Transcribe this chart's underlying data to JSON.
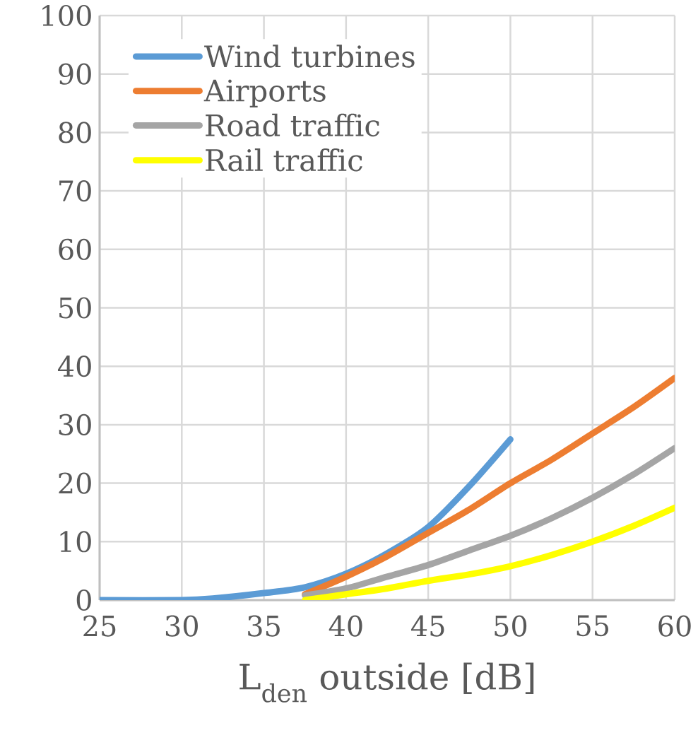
{
  "chart_data": {
    "type": "line",
    "xlabel": "L$_{den}$ outside [dB]",
    "xlim": [
      25,
      60
    ],
    "xticks": [
      25,
      30,
      35,
      40,
      45,
      50,
      55,
      60
    ],
    "ylim": [
      0,
      100
    ],
    "yticks": [
      0,
      10,
      20,
      30,
      40,
      50,
      60,
      70,
      80,
      90,
      100
    ],
    "grid": true,
    "legend": "top left",
    "marker": "none",
    "line_style": "solid",
    "series": [
      {
        "name": "Wind turbines",
        "color": "#5b9bd5",
        "x": [
          25,
          30,
          32,
          35,
          37.5,
          40,
          42.5,
          45,
          47.5,
          50
        ],
        "values": [
          0,
          0,
          0.3,
          1.2,
          2.2,
          4.5,
          8,
          12.5,
          19.5,
          27.5
        ]
      },
      {
        "name": "Airports",
        "color": "#ed7d31",
        "x": [
          37.5,
          40,
          42.5,
          45,
          47.5,
          50,
          52.5,
          55,
          57.5,
          60
        ],
        "values": [
          1,
          4,
          7.5,
          11.5,
          15.5,
          20,
          24,
          28.5,
          33,
          38
        ]
      },
      {
        "name": "Road traffic",
        "color": "#a5a5a5",
        "x": [
          37.5,
          40,
          42.5,
          45,
          47.5,
          50,
          52.5,
          55,
          57.5,
          60
        ],
        "values": [
          0.8,
          2,
          4,
          6,
          8.5,
          11,
          14,
          17.5,
          21.5,
          26
        ]
      },
      {
        "name": "Rail traffic",
        "color": "#ffff00",
        "x": [
          37.5,
          40,
          42.5,
          45,
          47.5,
          50,
          52.5,
          55,
          57.5,
          60
        ],
        "values": [
          0,
          1,
          2,
          3.3,
          4.4,
          5.8,
          7.7,
          10,
          12.7,
          15.8
        ]
      }
    ]
  }
}
